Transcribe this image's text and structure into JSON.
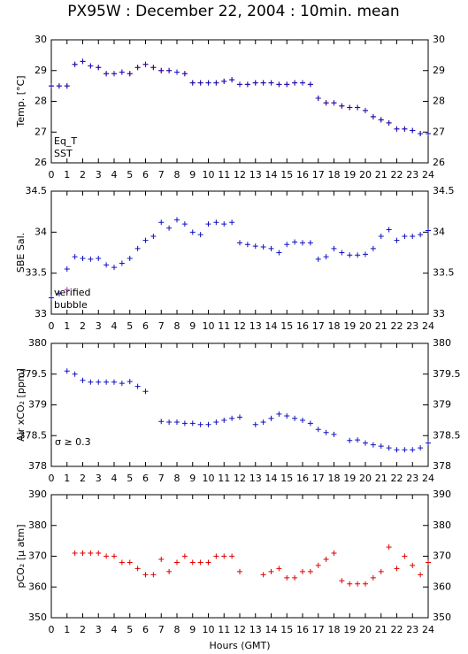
{
  "title": "PX95W : December 22, 2004 : 10min. mean",
  "chart_data": [
    {
      "type": "scatter",
      "ylabel": "Temp. [°C]",
      "legend": "lower left",
      "x": [
        0,
        0.5,
        1,
        1.5,
        2,
        2.5,
        3,
        3.5,
        4,
        4.5,
        5,
        5.5,
        6,
        6.5,
        7,
        7.5,
        8,
        8.5,
        9,
        9.5,
        10,
        10.5,
        11,
        11.5,
        12,
        12.5,
        13,
        13.5,
        14,
        14.5,
        15,
        15.5,
        16,
        16.5,
        17,
        17.5,
        18,
        18.5,
        19,
        19.5,
        20,
        20.5,
        21,
        21.5,
        22,
        22.5,
        23,
        23.5,
        24
      ],
      "series": [
        {
          "name": "Eq_T",
          "color": "#e00000",
          "values": [
            28.5,
            28.5,
            28.5,
            29.2,
            29.3,
            29.15,
            29.1,
            28.9,
            28.9,
            28.95,
            28.9,
            29.1,
            29.2,
            29.1,
            29.0,
            29.0,
            28.95,
            28.9,
            28.6,
            28.6,
            28.6,
            28.6,
            28.65,
            28.7,
            28.55,
            28.55,
            28.6,
            28.6,
            28.6,
            28.55,
            28.55,
            28.6,
            28.6,
            28.55,
            28.1,
            27.95,
            27.95,
            27.85,
            27.8,
            27.8,
            27.7,
            27.5,
            27.4,
            27.3,
            27.1,
            27.1,
            27.05,
            26.95,
            26.95
          ]
        },
        {
          "name": "SST",
          "color": "#1010c0",
          "values": [
            28.5,
            28.5,
            28.5,
            29.2,
            29.3,
            29.15,
            29.1,
            28.9,
            28.9,
            28.95,
            28.9,
            29.1,
            29.2,
            29.1,
            29.0,
            29.0,
            28.95,
            28.9,
            28.6,
            28.6,
            28.6,
            28.6,
            28.65,
            28.7,
            28.55,
            28.55,
            28.6,
            28.6,
            28.6,
            28.55,
            28.55,
            28.6,
            28.6,
            28.55,
            28.1,
            27.95,
            27.95,
            27.85,
            27.8,
            27.8,
            27.7,
            27.5,
            27.4,
            27.3,
            27.1,
            27.1,
            27.05,
            26.95,
            26.95
          ]
        }
      ],
      "xlim": [
        0,
        24
      ],
      "xticks": [
        0,
        1,
        2,
        3,
        4,
        5,
        6,
        7,
        8,
        9,
        10,
        11,
        12,
        13,
        14,
        15,
        16,
        17,
        18,
        19,
        20,
        21,
        22,
        23,
        24
      ],
      "ylim": [
        26,
        30
      ],
      "yticks": [
        26,
        27,
        28,
        29,
        30
      ]
    },
    {
      "type": "scatter",
      "ylabel": "SBE Sal.",
      "legend": "lower left",
      "x": [
        0,
        0.5,
        1,
        1.5,
        2,
        2.5,
        3,
        3.5,
        4,
        4.5,
        5,
        5.5,
        6,
        6.5,
        7,
        7.5,
        8,
        8.5,
        9,
        9.5,
        10,
        10.5,
        11,
        11.5,
        12,
        12.5,
        13,
        13.5,
        14,
        14.5,
        15,
        15.5,
        16,
        16.5,
        17,
        17.5,
        18,
        18.5,
        19,
        19.5,
        20,
        20.5,
        21,
        21.5,
        22,
        22.5,
        23,
        23.5,
        24
      ],
      "series": [
        {
          "name": "verified",
          "color": "#1010c0",
          "values": [
            33.2,
            33.25,
            33.55,
            33.7,
            33.68,
            33.67,
            33.68,
            33.6,
            33.57,
            33.62,
            33.68,
            33.8,
            33.9,
            33.95,
            34.12,
            34.05,
            34.15,
            34.1,
            34.0,
            33.97,
            34.1,
            34.12,
            34.1,
            34.12,
            33.87,
            33.85,
            33.83,
            33.82,
            33.8,
            33.75,
            33.85,
            33.88,
            33.87,
            33.87,
            33.67,
            33.7,
            33.8,
            33.75,
            33.72,
            33.72,
            33.73,
            33.8,
            33.95,
            34.03,
            33.9,
            33.95,
            33.95,
            33.97,
            34.02
          ]
        },
        {
          "name": "bubble",
          "color": "#d020d0",
          "values": [
            null,
            null,
            33.3,
            null,
            null,
            null,
            null,
            null,
            null,
            null,
            null,
            null,
            null,
            null,
            null,
            null,
            null,
            null,
            null,
            null,
            null,
            null,
            null,
            null,
            null,
            null,
            null,
            null,
            null,
            null,
            null,
            null,
            null,
            null,
            null,
            null,
            null,
            null,
            null,
            null,
            null,
            null,
            null,
            null,
            null,
            null,
            null,
            null,
            null
          ]
        }
      ],
      "xlim": [
        0,
        24
      ],
      "xticks": [
        0,
        1,
        2,
        3,
        4,
        5,
        6,
        7,
        8,
        9,
        10,
        11,
        12,
        13,
        14,
        15,
        16,
        17,
        18,
        19,
        20,
        21,
        22,
        23,
        24
      ],
      "ylim": [
        33,
        34.5
      ],
      "yticks": [
        33,
        33.5,
        34,
        34.5
      ]
    },
    {
      "type": "scatter",
      "ylabel": "Air xCO₂ [ppm]",
      "annotation": "σ ≥ 0.3",
      "annotation_color": "#d020d0",
      "x": [
        0,
        0.5,
        1,
        1.5,
        2,
        2.5,
        3,
        3.5,
        4,
        4.5,
        5,
        5.5,
        6,
        6.5,
        7,
        7.5,
        8,
        8.5,
        9,
        9.5,
        10,
        10.5,
        11,
        11.5,
        12,
        12.5,
        13,
        13.5,
        14,
        14.5,
        15,
        15.5,
        16,
        16.5,
        17,
        17.5,
        18,
        18.5,
        19,
        19.5,
        20,
        20.5,
        21,
        21.5,
        22,
        22.5,
        23,
        23.5,
        24
      ],
      "series": [
        {
          "color": "#1010c0",
          "values": [
            null,
            null,
            379.55,
            379.5,
            379.4,
            379.37,
            379.37,
            379.37,
            379.37,
            379.35,
            379.38,
            379.3,
            379.22,
            null,
            378.73,
            378.72,
            378.72,
            378.7,
            378.7,
            378.68,
            378.68,
            378.72,
            378.75,
            378.78,
            378.8,
            null,
            378.68,
            378.72,
            378.78,
            378.85,
            378.82,
            378.78,
            378.75,
            378.7,
            378.6,
            378.55,
            378.52,
            null,
            378.42,
            378.43,
            378.38,
            378.35,
            378.33,
            378.3,
            378.27,
            378.27,
            378.27,
            378.3,
            378.38
          ]
        }
      ],
      "xlim": [
        0,
        24
      ],
      "xticks": [
        0,
        1,
        2,
        3,
        4,
        5,
        6,
        7,
        8,
        9,
        10,
        11,
        12,
        13,
        14,
        15,
        16,
        17,
        18,
        19,
        20,
        21,
        22,
        23,
        24
      ],
      "ylim": [
        378,
        380
      ],
      "yticks": [
        378,
        378.5,
        379,
        379.5,
        380
      ]
    },
    {
      "type": "scatter",
      "ylabel": "pCO₂ [µ atm]",
      "xlabel": "Hours (GMT)",
      "x": [
        0,
        0.5,
        1,
        1.5,
        2,
        2.5,
        3,
        3.5,
        4,
        4.5,
        5,
        5.5,
        6,
        6.5,
        7,
        7.5,
        8,
        8.5,
        9,
        9.5,
        10,
        10.5,
        11,
        11.5,
        12,
        12.5,
        13,
        13.5,
        14,
        14.5,
        15,
        15.5,
        16,
        16.5,
        17,
        17.5,
        18,
        18.5,
        19,
        19.5,
        20,
        20.5,
        21,
        21.5,
        22,
        22.5,
        23,
        23.5,
        24
      ],
      "series": [
        {
          "color": "#e00000",
          "values": [
            null,
            null,
            null,
            371,
            371,
            371,
            371,
            370,
            370,
            368,
            368,
            366,
            364,
            364,
            369,
            365,
            368,
            370,
            368,
            368,
            368,
            370,
            370,
            370,
            365,
            null,
            null,
            364,
            365,
            366,
            363,
            363,
            365,
            365,
            367,
            369,
            371,
            362,
            361,
            361,
            361,
            363,
            365,
            373,
            366,
            370,
            367,
            364,
            368
          ]
        }
      ],
      "xlim": [
        0,
        24
      ],
      "xticks": [
        0,
        1,
        2,
        3,
        4,
        5,
        6,
        7,
        8,
        9,
        10,
        11,
        12,
        13,
        14,
        15,
        16,
        17,
        18,
        19,
        20,
        21,
        22,
        23,
        24
      ],
      "ylim": [
        350,
        390
      ],
      "yticks": [
        350,
        360,
        370,
        380,
        390
      ]
    }
  ]
}
